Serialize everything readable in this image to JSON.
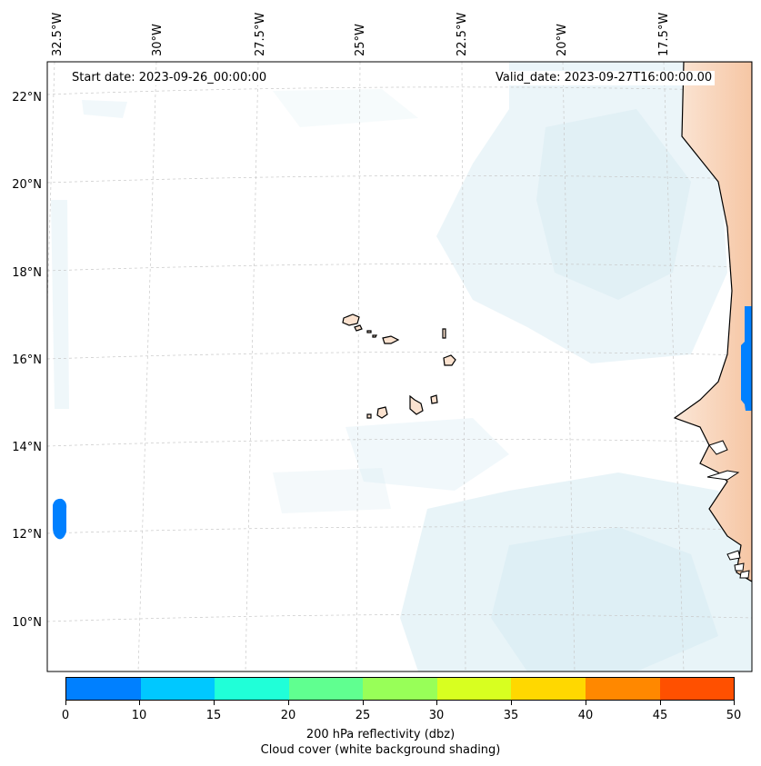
{
  "header": {
    "start_date": "Start date: 2023-09-26_00:00:00",
    "valid_date": "Valid_date: 2023-09-27T16:00:00.00"
  },
  "map": {
    "lon_labels": [
      "32.5°W",
      "30°W",
      "27.5°W",
      "25°W",
      "22.5°W",
      "20°W",
      "17.5°W"
    ],
    "lat_labels": [
      "22°N",
      "20°N",
      "18°N",
      "16°N",
      "14°N",
      "12°N",
      "10°N"
    ],
    "features": [
      "Cape Verde Islands",
      "West African coast (Senegal, Gambia, Guinea-Bissau)",
      "Reflectivity patch near 15–16°N, 16.5°W",
      "Reflectivity patch near 12°N, 32.5°W"
    ]
  },
  "colorbar": {
    "values": [
      0,
      10,
      15,
      20,
      25,
      30,
      35,
      40,
      45,
      50
    ],
    "tick_labels": [
      "0",
      "10",
      "15",
      "20",
      "25",
      "30",
      "35",
      "40",
      "45",
      "50"
    ],
    "colors": [
      "#0080ff",
      "#00c8ff",
      "#20ffd8",
      "#60ff90",
      "#98ff58",
      "#d8ff20",
      "#ffd800",
      "#ff8800",
      "#ff5000"
    ],
    "label_line1": "200 hPa reflectivity (dbz)",
    "label_line2": "Cloud cover (white background shading)"
  },
  "style": {
    "land_color": "#f8d8c0",
    "cloud_color": "#cfe8f0",
    "grid_color": "#c8c8c8"
  }
}
